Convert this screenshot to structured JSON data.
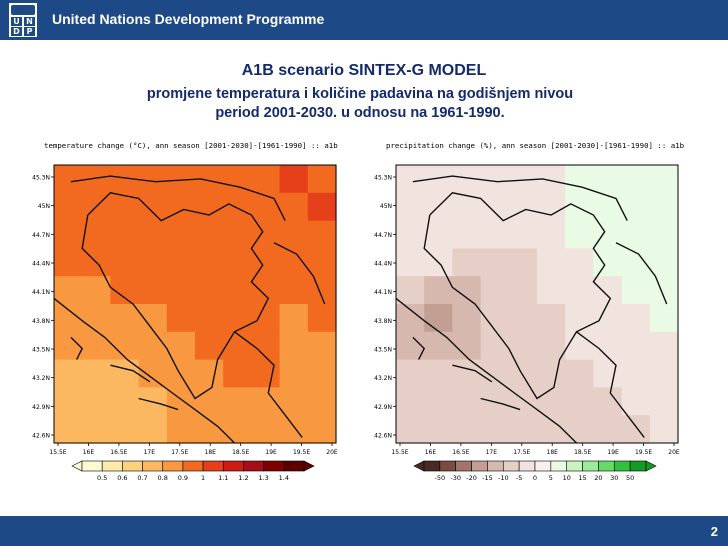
{
  "header": {
    "org_name": "United Nations Development Programme",
    "logo_letters": [
      "U",
      "N",
      "D",
      "P"
    ]
  },
  "slide": {
    "title": "A1B scenario SINTEX-G MODEL",
    "subtitle_line1": "promjene temperatura i količine padavina na godišnjem nivou",
    "subtitle_line2": "period 2001-2030. u odnosu na 1961-1990.",
    "page_number": "2"
  },
  "chart_data": [
    {
      "type": "heatmap",
      "title": "temperature change (°C), ann season [2001-2030]-[1961-1990] :: a1b",
      "x_ticks": [
        "15.5E",
        "16E",
        "16.5E",
        "17E",
        "17.5E",
        "18E",
        "18.5E",
        "19E",
        "19.5E",
        "20E"
      ],
      "y_ticks": [
        "45.3N",
        "45N",
        "44.7N",
        "44.4N",
        "44.1N",
        "43.8N",
        "43.5N",
        "43.2N",
        "42.9N",
        "42.6N"
      ],
      "legend_levels": [
        "0.5",
        "0.6",
        "0.7",
        "0.8",
        "0.9",
        "1",
        "1.1",
        "1.2",
        "1.3",
        "1.4"
      ],
      "legend_colors": [
        "#fefbd4",
        "#fde9a8",
        "#fcd27d",
        "#fbb860",
        "#f89840",
        "#f26a20",
        "#e6401a",
        "#cc1c14",
        "#a50f15",
        "#7f0000",
        "#5e0000"
      ]
    },
    {
      "type": "heatmap",
      "title": "precipitation change (%), ann season [2001-2030]-[1961-1990] :: a1b",
      "x_ticks": [
        "15.5E",
        "16E",
        "16.5E",
        "17E",
        "17.5E",
        "18E",
        "18.5E",
        "19E",
        "19.5E",
        "20E"
      ],
      "y_ticks": [
        "45.3N",
        "45N",
        "44.7N",
        "44.4N",
        "44.1N",
        "43.8N",
        "43.5N",
        "43.2N",
        "42.9N",
        "42.6N"
      ],
      "legend_levels": [
        "-50",
        "-30",
        "-20",
        "-15",
        "-10",
        "-5",
        "0",
        "5",
        "10",
        "15",
        "20",
        "30",
        "50"
      ],
      "legend_colors": [
        "#4a2a22",
        "#7a4c40",
        "#a3756a",
        "#c39e93",
        "#d7b8ae",
        "#e6cfc7",
        "#f1e3de",
        "#f7f0ec",
        "#e9fbe4",
        "#c8f4c0",
        "#9ceb98",
        "#63db66",
        "#2fc23a",
        "#139a22"
      ]
    }
  ]
}
